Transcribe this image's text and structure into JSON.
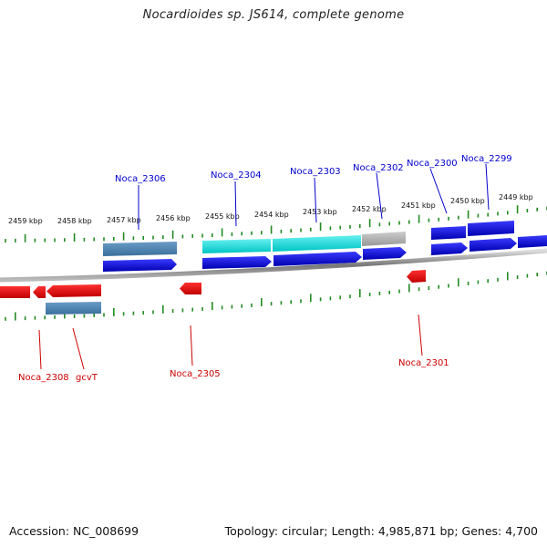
{
  "title": "Nocardioides sp. JS614, complete genome",
  "footer": {
    "accession": "Accession: NC_008699",
    "stats": "Topology: circular; Length: 4,985,871 bp; Genes: 4,700"
  },
  "colors": {
    "forward_cds": "#0000dd",
    "reverse_cds": "#ee0000",
    "steelblue_feature": "#4682b4",
    "cyan_feature": "#00dddd",
    "gray_feature": "#aaaaaa",
    "tick": "#228b22",
    "forward_label": "#0000cc",
    "reverse_label": "#cc0000",
    "backbone": "#999999"
  },
  "scale": {
    "ticks": [
      {
        "label": "2459 kbp"
      },
      {
        "label": "2458 kbp"
      },
      {
        "label": "2457 kbp"
      },
      {
        "label": "2456 kbp"
      },
      {
        "label": "2455 kbp"
      },
      {
        "label": "2454 kbp"
      },
      {
        "label": "2453 kbp"
      },
      {
        "label": "2452 kbp"
      },
      {
        "label": "2451 kbp"
      },
      {
        "label": "2450 kbp"
      },
      {
        "label": "2449 kbp"
      }
    ]
  },
  "forward_labels": [
    {
      "name": "Noca_2306"
    },
    {
      "name": "Noca_2304"
    },
    {
      "name": "Noca_2303"
    },
    {
      "name": "Noca_2302"
    },
    {
      "name": "Noca_2300"
    },
    {
      "name": "Noca_2299"
    }
  ],
  "reverse_labels": [
    {
      "name": "Noca_2308"
    },
    {
      "name": "gcvT"
    },
    {
      "name": "Noca_2305"
    },
    {
      "name": "Noca_2301"
    }
  ]
}
